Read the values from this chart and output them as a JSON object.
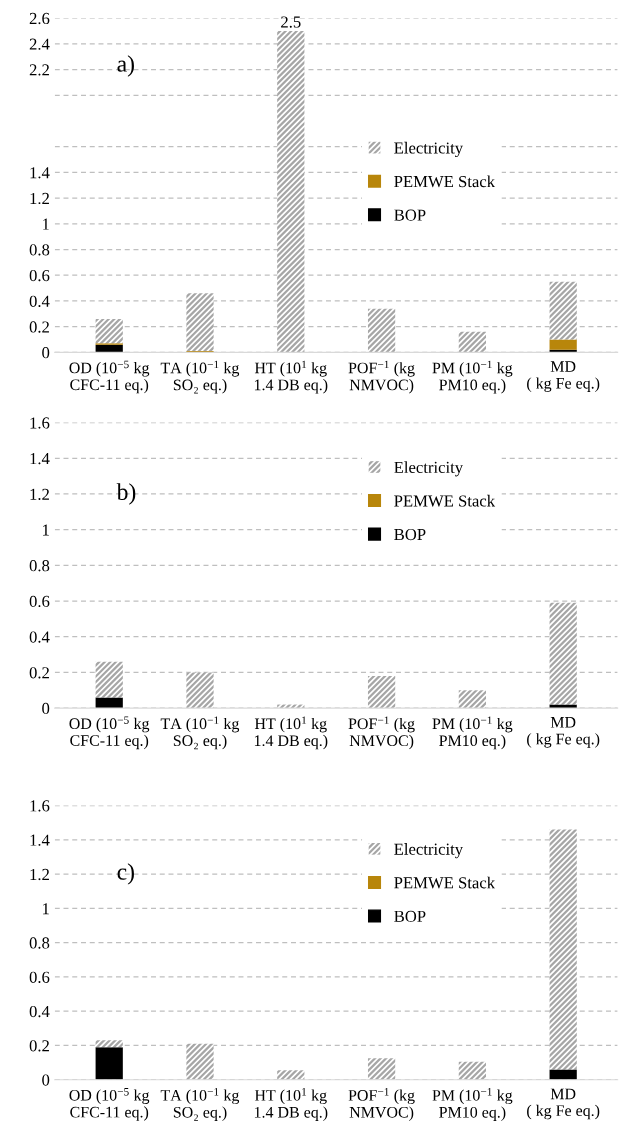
{
  "chart_data": [
    {
      "type": "bar",
      "stacked": true,
      "annotations": [
        "a)"
      ],
      "categories": [
        "OD (10$^{−5}$ kg\nCFC-11 eq.)",
        "TA (10$^{−1}$ kg\nSO₂ eq.)",
        "HT (10$^{1}$ kg\n1.4 DB eq.)",
        "POF$^{−1}$ (kg\nNMVOC)",
        "PM (10$^{−1}$ kg\nPM10 eq.)",
        "MD\n( kg Fe eq.)"
      ],
      "series": [
        {
          "name": "BOP",
          "color": "#000000",
          "values": [
            0.06,
            0,
            0,
            0,
            0,
            0.02
          ]
        },
        {
          "name": "PEMWE Stack",
          "color": "#b8860b",
          "values": [
            0.01,
            0.01,
            0,
            0,
            0,
            0.08
          ]
        },
        {
          "name": "Electricity",
          "color": "#a6a6a6",
          "values": [
            0.19,
            0.45,
            2.5,
            0.34,
            0.16,
            0.45
          ],
          "value_labels": [
            null,
            null,
            "2.5",
            null,
            null,
            null
          ]
        }
      ],
      "ylim": [
        0,
        2.6
      ],
      "yticks": [
        0,
        0.2,
        0.4,
        0.6,
        0.8,
        1,
        1.2,
        1.4,
        {
          "value": 1.6,
          "label": null
        },
        {
          "value": 2.0,
          "label": null
        },
        2.2,
        2.4,
        2.6
      ],
      "grid": "y",
      "legend": "top right"
    },
    {
      "type": "bar",
      "stacked": true,
      "annotations": [
        "b)"
      ],
      "categories": [
        "OD (10$^{−5}$ kg\nCFC-11 eq.)",
        "TA (10$^{−1}$ kg\nSO₂ eq.)",
        "HT (10$^{1}$ kg\n1.4 DB eq.)",
        "POF$^{−1}$ (kg\nNMVOC)",
        "PM (10$^{−1}$ kg\nPM10 eq.)",
        "MD\n( kg Fe eq.)"
      ],
      "series": [
        {
          "name": "BOP",
          "color": "#000000",
          "values": [
            0.06,
            0,
            0,
            0,
            0,
            0.02
          ]
        },
        {
          "name": "PEMWE Stack",
          "color": "#b8860b",
          "values": [
            0,
            0,
            0,
            0,
            0,
            0
          ]
        },
        {
          "name": "Electricity",
          "color": "#a6a6a6",
          "values": [
            0.2,
            0.2,
            0.02,
            0.18,
            0.1,
            0.57
          ]
        }
      ],
      "ylim": [
        0,
        1.6
      ],
      "yticks": [
        0,
        0.2,
        0.4,
        0.6,
        0.8,
        1,
        1.2,
        1.4,
        1.6
      ],
      "grid": "y",
      "legend": "top right"
    },
    {
      "type": "bar",
      "stacked": true,
      "annotations": [
        "c)"
      ],
      "categories": [
        "OD (10$^{−5}$ kg\nCFC-11 eq.)",
        "TA (10$^{−1}$ kg\nSO₂ eq.)",
        "HT (10$^{1}$ kg\n1.4 DB eq.)",
        "POF$^{−1}$ (kg\nNMVOC)",
        "PM (10$^{−1}$ kg\nPM10 eq.)",
        "MD\n( kg Fe eq.)"
      ],
      "series": [
        {
          "name": "BOP",
          "color": "#000000",
          "values": [
            0.19,
            0,
            0,
            0,
            0,
            0.06
          ]
        },
        {
          "name": "PEMWE Stack",
          "color": "#b8860b",
          "values": [
            0,
            0,
            0,
            0,
            0,
            0
          ]
        },
        {
          "name": "Electricity",
          "color": "#a6a6a6",
          "values": [
            0.04,
            0.21,
            0.055,
            0.125,
            0.105,
            1.4
          ]
        }
      ],
      "ylim": [
        0,
        1.6
      ],
      "yticks": [
        0,
        0.2,
        0.4,
        0.6,
        0.8,
        1,
        1.2,
        1.4,
        1.6
      ],
      "grid": "y",
      "legend": "top right"
    }
  ]
}
